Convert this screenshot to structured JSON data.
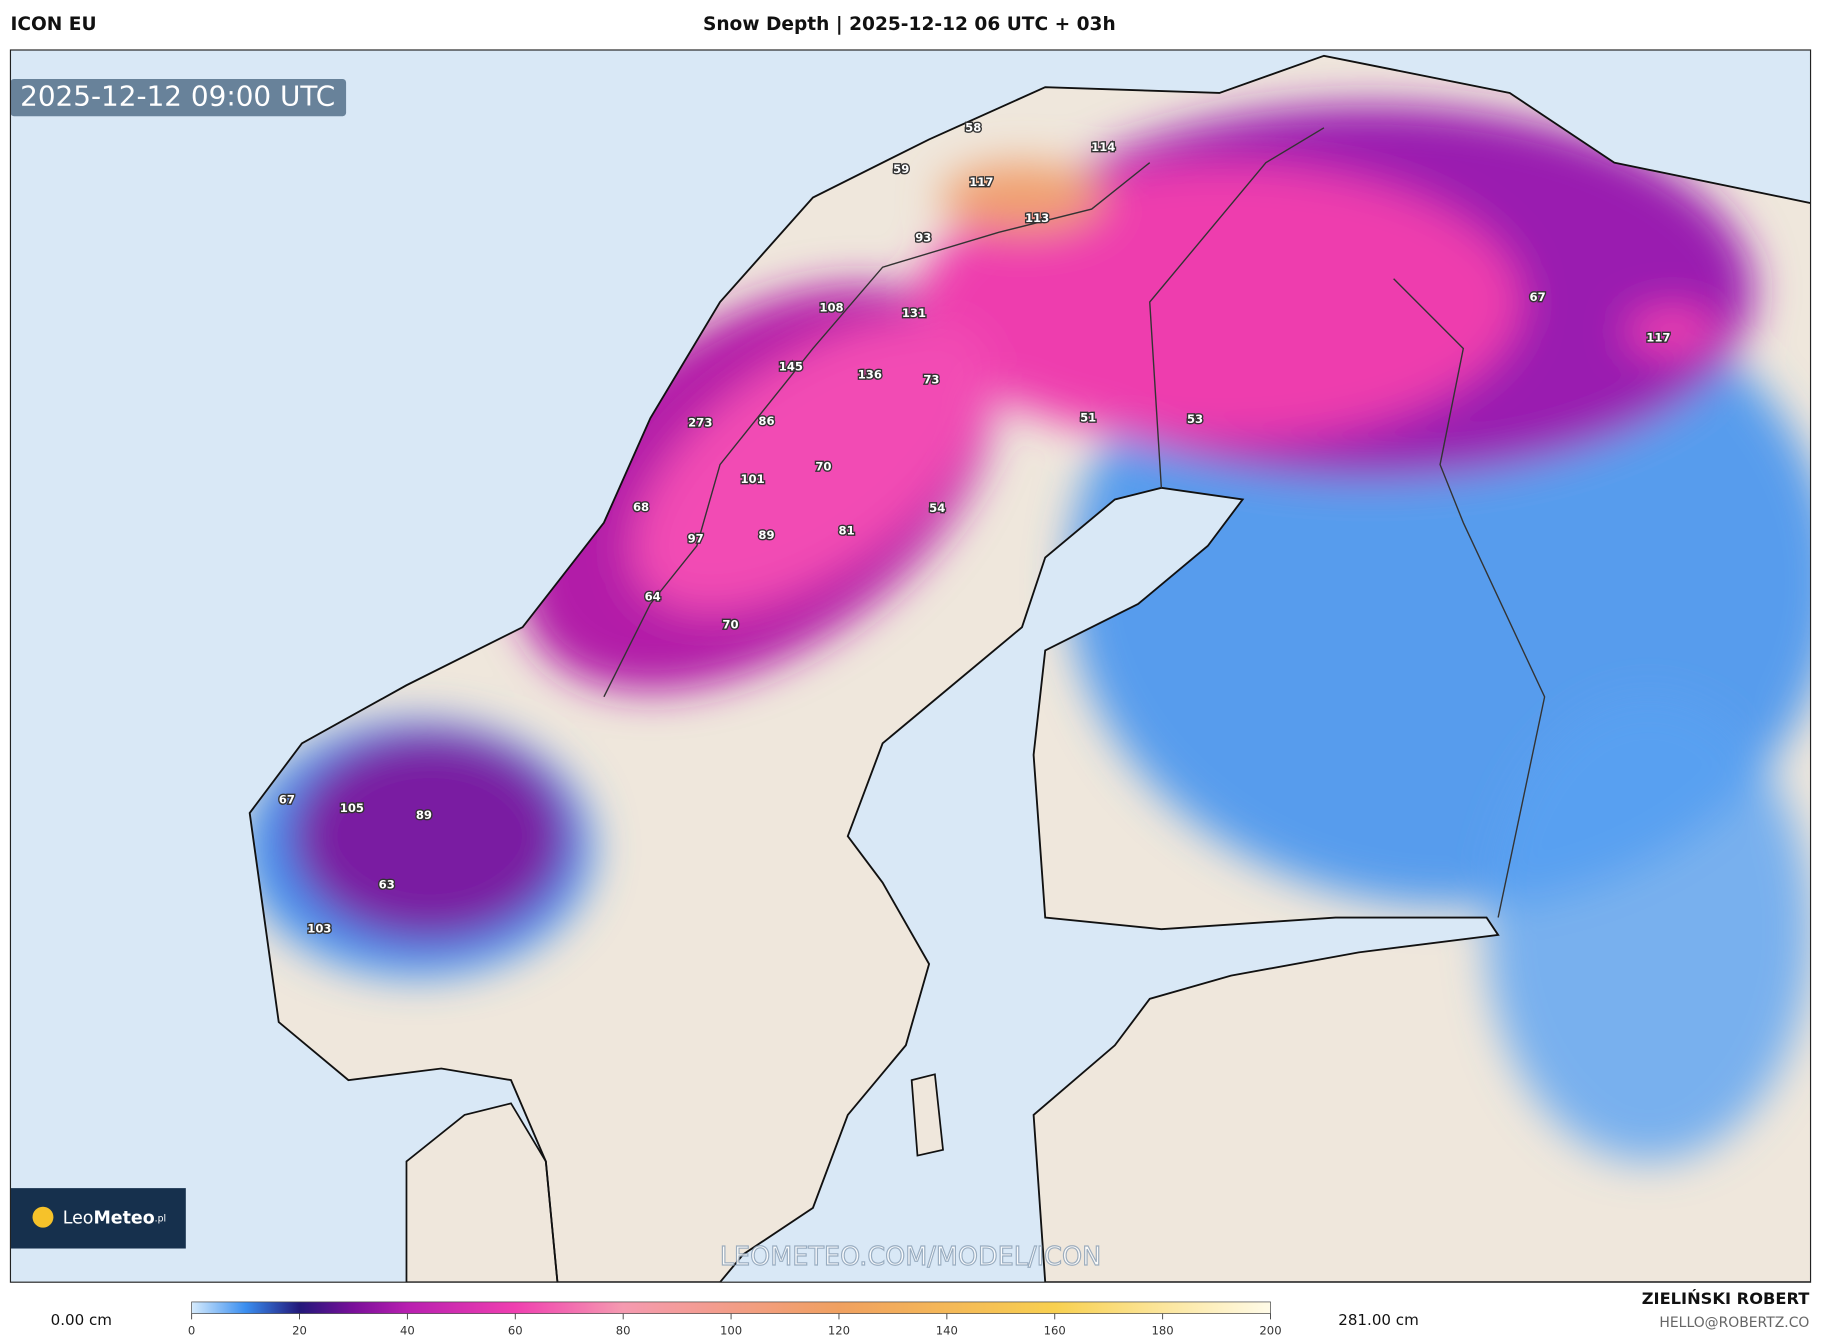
{
  "header": {
    "model": "ICON EU",
    "title": "Snow Depth | 2025-12-12 06 UTC + 03h"
  },
  "map": {
    "valid_time": "2025-12-12 09:00 UTC",
    "point_labels": [
      58,
      114,
      59,
      117,
      113,
      93,
      108,
      131,
      145,
      136,
      73,
      273,
      86,
      51,
      53,
      101,
      70,
      54,
      68,
      97,
      89,
      81,
      64,
      70,
      67,
      117,
      67,
      105,
      89,
      63,
      103
    ],
    "watermark": "LEOMETEO.COM/MODEL/ICON"
  },
  "logo": {
    "name_light": "Leo",
    "name_bold": "Meteo",
    "suffix": ".pl"
  },
  "colorbar": {
    "min_label": "0.00 cm",
    "max_label": "281.00 cm",
    "range": [
      0,
      200
    ],
    "ticks": [
      0,
      20,
      40,
      60,
      80,
      100,
      120,
      140,
      160,
      180,
      200
    ]
  },
  "footer": {
    "author": "ZIELIŃSKI ROBERT",
    "email": "HELLO@ROBERTZ.CO"
  }
}
